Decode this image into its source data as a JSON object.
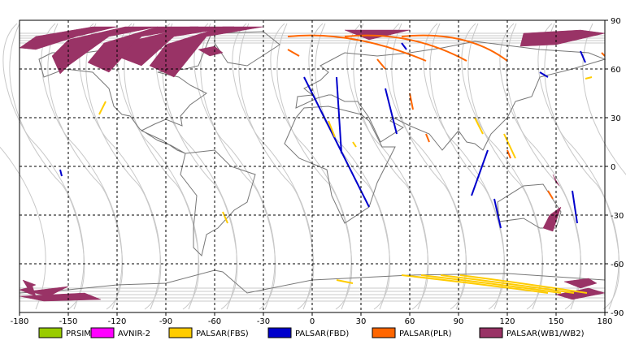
{
  "map": {
    "x_ticks": [
      "-180",
      "-150",
      "-120",
      "-90",
      "-60",
      "-30",
      "0",
      "30",
      "60",
      "90",
      "120",
      "150",
      "180"
    ],
    "y_ticks": [
      "90",
      "60",
      "30",
      "0",
      "-30",
      "-60",
      "-90"
    ],
    "lon_range": [
      -180,
      180
    ],
    "lat_range": [
      -90,
      90
    ],
    "grid": "dashed",
    "legend_position": "bottom"
  },
  "legend": [
    {
      "label": "PRSIM",
      "color": "#99cc00"
    },
    {
      "label": "AVNIR-2",
      "color": "#ff00ff"
    },
    {
      "label": "PALSAR(FBS)",
      "color": "#ffcc00"
    },
    {
      "label": "PALSAR(FBD)",
      "color": "#0000cc"
    },
    {
      "label": "PALSAR(PLR)",
      "color": "#ff6600"
    },
    {
      "label": "PALSAR(WB1/WB2)",
      "color": "#993366"
    }
  ],
  "colors": {
    "orbit_track": "#c8c8c8",
    "coastline": "#777777",
    "grid": "#000000"
  }
}
